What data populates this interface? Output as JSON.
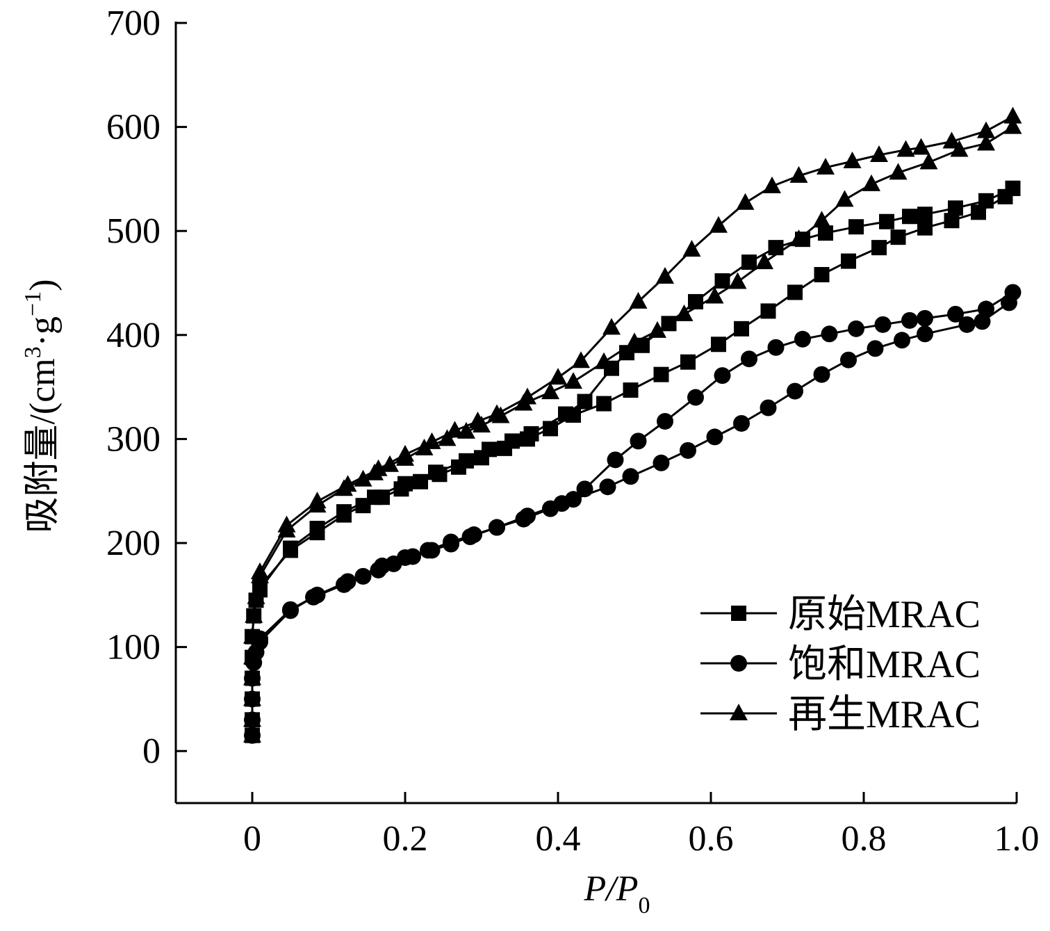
{
  "chart_data": {
    "type": "line",
    "xlabel": "P/P0",
    "xlabel_main": "P/P",
    "xlabel_sub": "0",
    "ylabel_main": "吸附量/(cm",
    "ylabel_sup1": "3",
    "ylabel_mid": "·g",
    "ylabel_sup2": "−1",
    "ylabel_end": ")",
    "xlim": [
      -0.1,
      1.0
    ],
    "ylim": [
      -50,
      700
    ],
    "xticks": [
      0,
      0.2,
      0.4,
      0.6,
      0.8,
      1.0
    ],
    "xtick_labels": [
      "0",
      "0.2",
      "0.4",
      "0.6",
      "0.8",
      "1.0"
    ],
    "yticks": [
      0,
      100,
      200,
      300,
      400,
      500,
      600,
      700
    ],
    "ytick_labels": [
      "0",
      "100",
      "200",
      "300",
      "400",
      "500",
      "600",
      "700"
    ],
    "legend_position": "bottom-right",
    "grid": false,
    "series": [
      {
        "name": "原始MRAC",
        "marker": "square",
        "adsorption": [
          [
            0.0,
            15
          ],
          [
            0.0,
            30
          ],
          [
            0.0,
            50
          ],
          [
            0.0,
            70
          ],
          [
            0.0,
            90
          ],
          [
            0.0,
            110
          ],
          [
            0.002,
            130
          ],
          [
            0.005,
            145
          ],
          [
            0.01,
            158
          ],
          [
            0.05,
            193
          ],
          [
            0.085,
            210
          ],
          [
            0.12,
            227
          ],
          [
            0.145,
            236
          ],
          [
            0.17,
            244
          ],
          [
            0.195,
            252
          ],
          [
            0.22,
            259
          ],
          [
            0.245,
            266
          ],
          [
            0.27,
            273
          ],
          [
            0.3,
            282
          ],
          [
            0.33,
            291
          ],
          [
            0.36,
            300
          ],
          [
            0.39,
            310
          ],
          [
            0.42,
            323
          ],
          [
            0.46,
            334
          ],
          [
            0.495,
            347
          ],
          [
            0.535,
            362
          ],
          [
            0.57,
            374
          ],
          [
            0.61,
            391
          ],
          [
            0.64,
            406
          ],
          [
            0.675,
            423
          ],
          [
            0.71,
            441
          ],
          [
            0.745,
            458
          ],
          [
            0.78,
            471
          ],
          [
            0.82,
            484
          ],
          [
            0.845,
            494
          ],
          [
            0.88,
            503
          ],
          [
            0.915,
            510
          ],
          [
            0.95,
            518
          ],
          [
            0.985,
            533
          ],
          [
            0.995,
            541
          ]
        ],
        "desorption": [
          [
            0.995,
            541
          ],
          [
            0.96,
            529
          ],
          [
            0.92,
            522
          ],
          [
            0.88,
            516
          ],
          [
            0.86,
            514
          ],
          [
            0.83,
            509
          ],
          [
            0.79,
            504
          ],
          [
            0.75,
            498
          ],
          [
            0.72,
            492
          ],
          [
            0.685,
            484
          ],
          [
            0.65,
            470
          ],
          [
            0.615,
            452
          ],
          [
            0.58,
            432
          ],
          [
            0.545,
            411
          ],
          [
            0.51,
            390
          ],
          [
            0.49,
            383
          ],
          [
            0.47,
            368
          ],
          [
            0.435,
            336
          ],
          [
            0.41,
            324
          ],
          [
            0.365,
            305
          ],
          [
            0.34,
            298
          ],
          [
            0.31,
            290
          ],
          [
            0.28,
            279
          ],
          [
            0.24,
            268
          ],
          [
            0.2,
            257
          ],
          [
            0.16,
            244
          ],
          [
            0.12,
            230
          ],
          [
            0.085,
            214
          ],
          [
            0.05,
            195
          ],
          [
            0.01,
            155
          ]
        ]
      },
      {
        "name": "饱和MRAC",
        "marker": "circle",
        "adsorption": [
          [
            0.0,
            15
          ],
          [
            0.0,
            30
          ],
          [
            0.0,
            50
          ],
          [
            0.0,
            70
          ],
          [
            0.002,
            85
          ],
          [
            0.005,
            95
          ],
          [
            0.01,
            105
          ],
          [
            0.05,
            135
          ],
          [
            0.08,
            148
          ],
          [
            0.12,
            160
          ],
          [
            0.145,
            168
          ],
          [
            0.165,
            174
          ],
          [
            0.185,
            180
          ],
          [
            0.21,
            187
          ],
          [
            0.235,
            193
          ],
          [
            0.26,
            199
          ],
          [
            0.285,
            206
          ],
          [
            0.32,
            215
          ],
          [
            0.355,
            223
          ],
          [
            0.39,
            233
          ],
          [
            0.42,
            242
          ],
          [
            0.465,
            254
          ],
          [
            0.495,
            264
          ],
          [
            0.535,
            277
          ],
          [
            0.57,
            289
          ],
          [
            0.605,
            302
          ],
          [
            0.64,
            315
          ],
          [
            0.675,
            330
          ],
          [
            0.71,
            346
          ],
          [
            0.745,
            362
          ],
          [
            0.78,
            376
          ],
          [
            0.815,
            387
          ],
          [
            0.85,
            395
          ],
          [
            0.88,
            401
          ],
          [
            0.935,
            410
          ],
          [
            0.955,
            413
          ],
          [
            0.99,
            431
          ]
        ],
        "desorption": [
          [
            0.995,
            441
          ],
          [
            0.96,
            425
          ],
          [
            0.92,
            420
          ],
          [
            0.88,
            416
          ],
          [
            0.86,
            414
          ],
          [
            0.825,
            410
          ],
          [
            0.79,
            406
          ],
          [
            0.755,
            401
          ],
          [
            0.72,
            396
          ],
          [
            0.685,
            388
          ],
          [
            0.65,
            377
          ],
          [
            0.615,
            361
          ],
          [
            0.58,
            340
          ],
          [
            0.54,
            317
          ],
          [
            0.505,
            298
          ],
          [
            0.475,
            280
          ],
          [
            0.435,
            252
          ],
          [
            0.405,
            238
          ],
          [
            0.36,
            226
          ],
          [
            0.32,
            215
          ],
          [
            0.29,
            208
          ],
          [
            0.26,
            201
          ],
          [
            0.23,
            193
          ],
          [
            0.2,
            186
          ],
          [
            0.17,
            178
          ],
          [
            0.125,
            163
          ],
          [
            0.085,
            150
          ],
          [
            0.05,
            136
          ],
          [
            0.01,
            108
          ]
        ]
      },
      {
        "name": "再生MRAC",
        "marker": "triangle",
        "adsorption": [
          [
            0.0,
            15
          ],
          [
            0.0,
            30
          ],
          [
            0.0,
            50
          ],
          [
            0.0,
            70
          ],
          [
            0.0,
            90
          ],
          [
            0.0,
            110
          ],
          [
            0.002,
            130
          ],
          [
            0.005,
            148
          ],
          [
            0.01,
            168
          ],
          [
            0.045,
            212
          ],
          [
            0.085,
            236
          ],
          [
            0.12,
            252
          ],
          [
            0.145,
            261
          ],
          [
            0.16,
            267
          ],
          [
            0.18,
            275
          ],
          [
            0.2,
            281
          ],
          [
            0.225,
            291
          ],
          [
            0.255,
            300
          ],
          [
            0.28,
            307
          ],
          [
            0.3,
            313
          ],
          [
            0.325,
            322
          ],
          [
            0.355,
            334
          ],
          [
            0.39,
            345
          ],
          [
            0.42,
            355
          ],
          [
            0.46,
            374
          ],
          [
            0.5,
            393
          ],
          [
            0.53,
            404
          ],
          [
            0.565,
            420
          ],
          [
            0.605,
            437
          ],
          [
            0.635,
            451
          ],
          [
            0.67,
            470
          ],
          [
            0.715,
            492
          ],
          [
            0.745,
            510
          ],
          [
            0.775,
            530
          ],
          [
            0.81,
            545
          ],
          [
            0.845,
            556
          ],
          [
            0.885,
            566
          ],
          [
            0.925,
            578
          ],
          [
            0.96,
            584
          ],
          [
            0.995,
            600
          ]
        ],
        "desorption": [
          [
            0.995,
            610
          ],
          [
            0.96,
            596
          ],
          [
            0.915,
            586
          ],
          [
            0.875,
            580
          ],
          [
            0.855,
            578
          ],
          [
            0.82,
            573
          ],
          [
            0.785,
            567
          ],
          [
            0.75,
            561
          ],
          [
            0.715,
            553
          ],
          [
            0.68,
            543
          ],
          [
            0.645,
            527
          ],
          [
            0.61,
            505
          ],
          [
            0.575,
            482
          ],
          [
            0.54,
            456
          ],
          [
            0.505,
            432
          ],
          [
            0.47,
            407
          ],
          [
            0.43,
            375
          ],
          [
            0.4,
            359
          ],
          [
            0.36,
            340
          ],
          [
            0.32,
            324
          ],
          [
            0.295,
            317
          ],
          [
            0.265,
            308
          ],
          [
            0.235,
            297
          ],
          [
            0.2,
            285
          ],
          [
            0.165,
            271
          ],
          [
            0.125,
            256
          ],
          [
            0.085,
            240
          ],
          [
            0.045,
            217
          ],
          [
            0.01,
            172
          ]
        ]
      }
    ]
  }
}
